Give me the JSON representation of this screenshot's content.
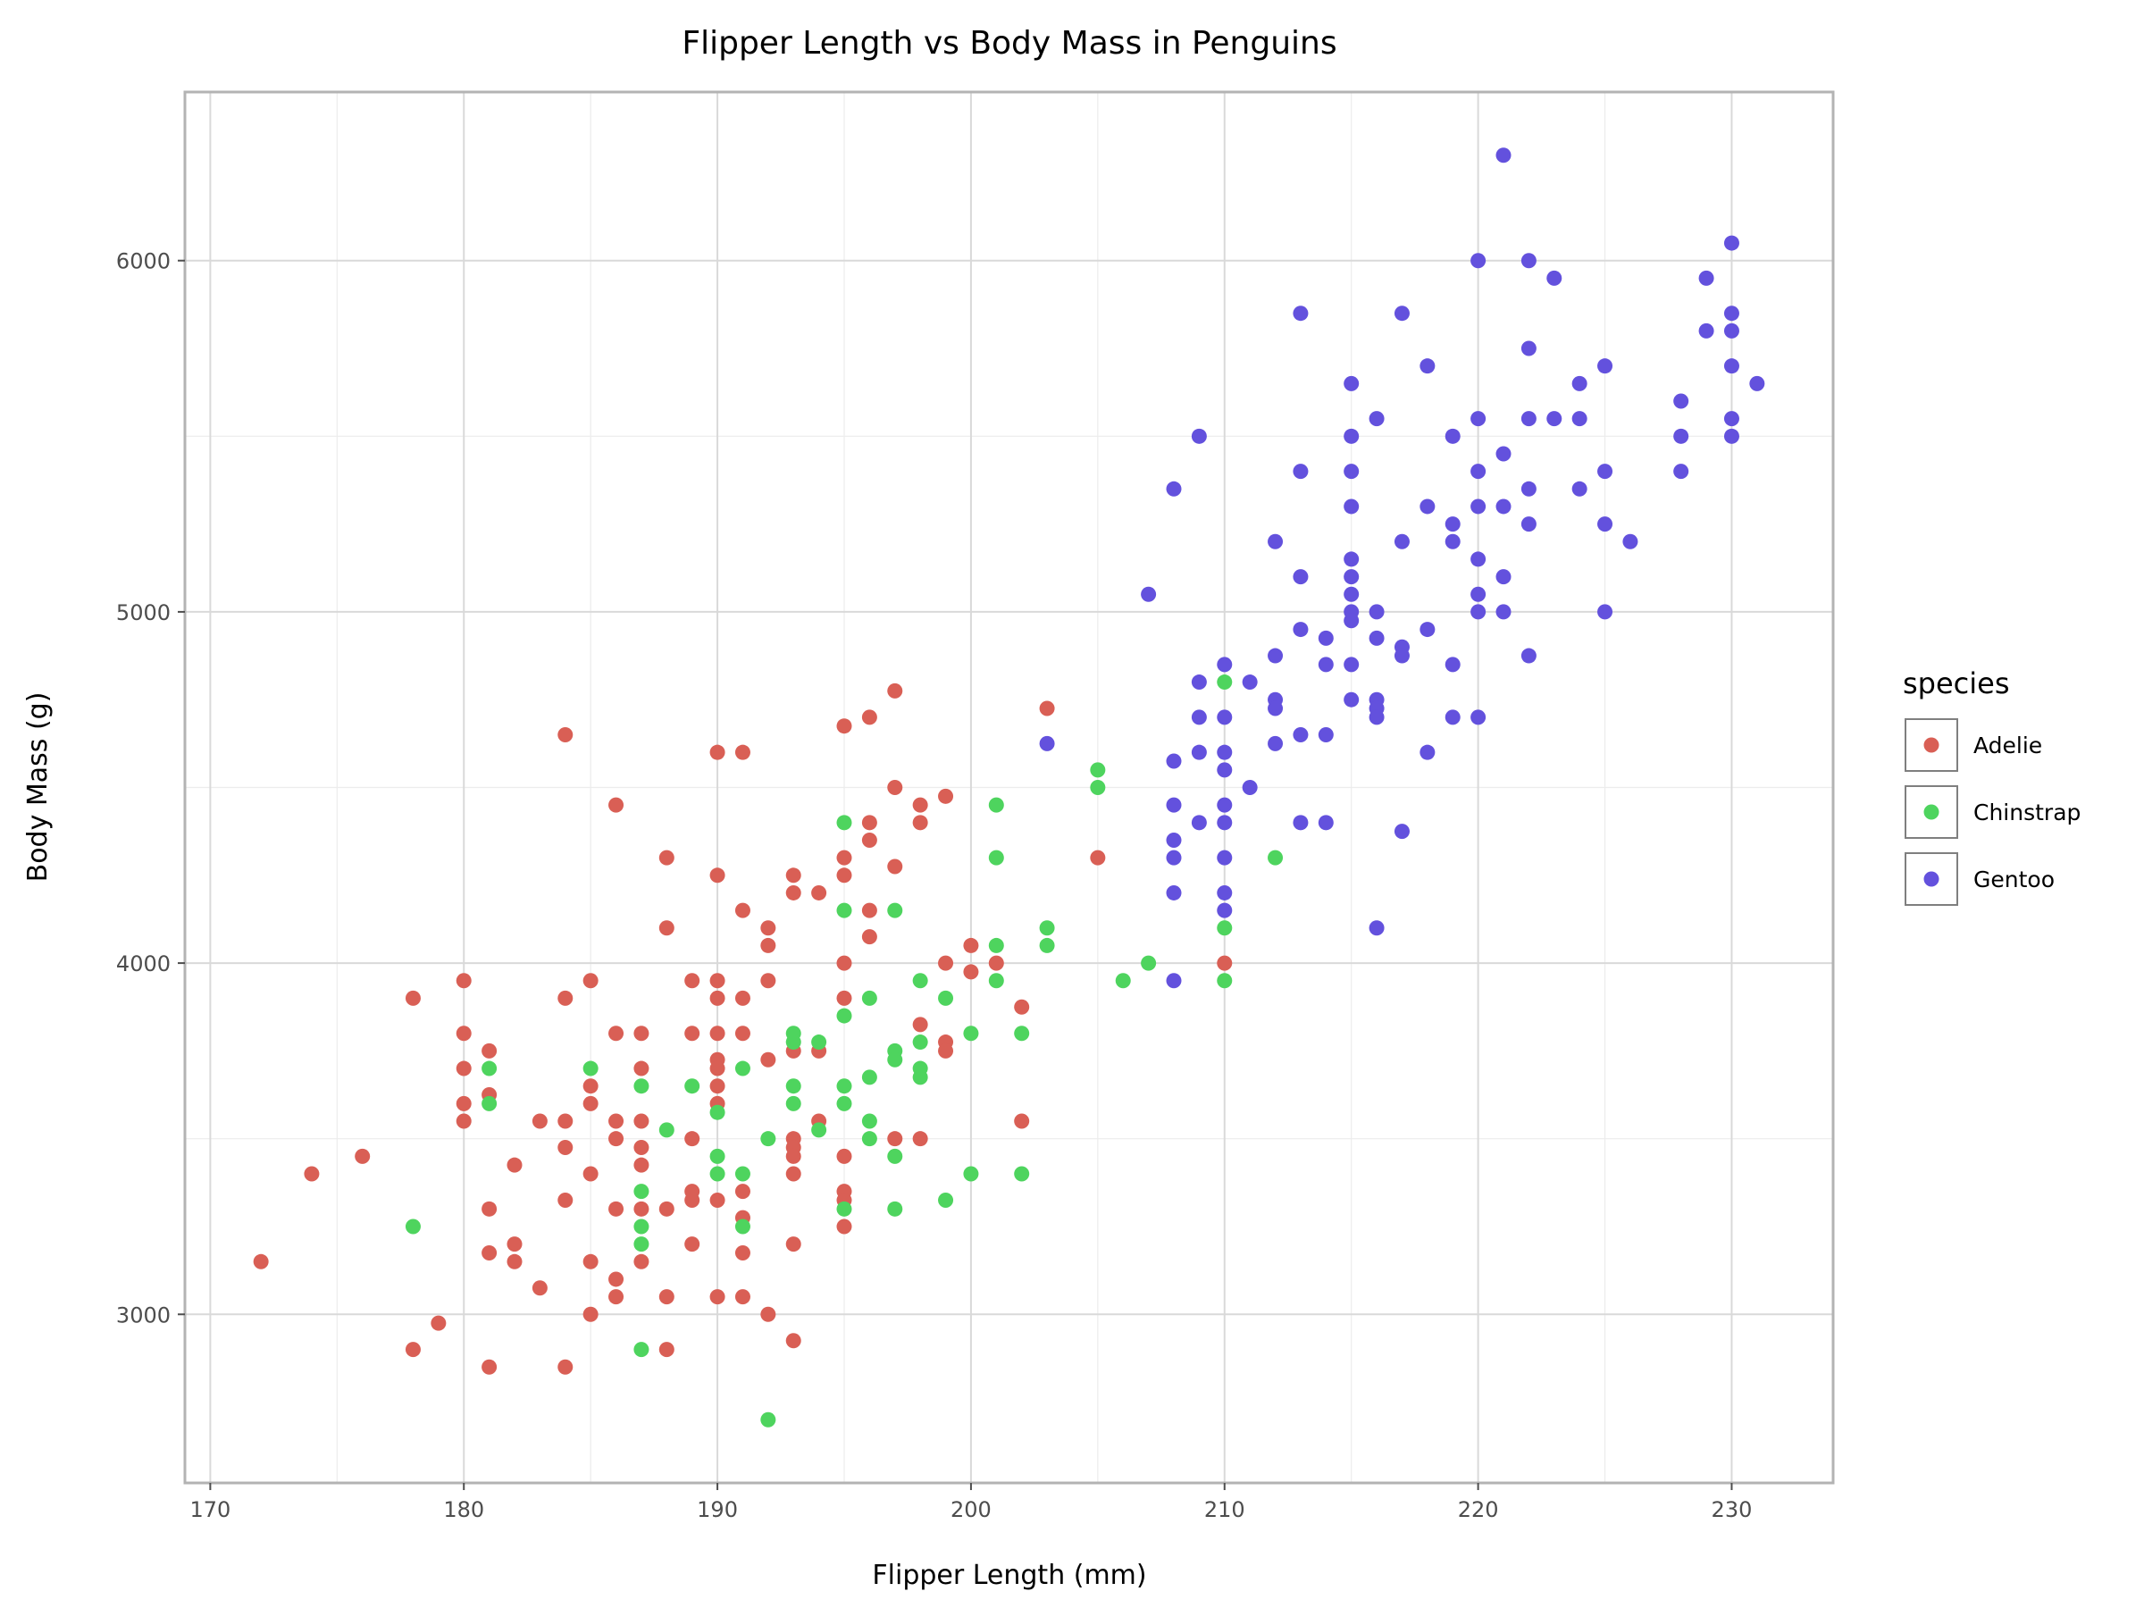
{
  "chart_data": {
    "type": "scatter",
    "title": "Flipper Length vs Body Mass in Penguins",
    "xlabel": "Flipper Length (mm)",
    "ylabel": "Body Mass (g)",
    "xlim": [
      169,
      234
    ],
    "ylim": [
      2520,
      6480
    ],
    "x_ticks": [
      170,
      180,
      190,
      200,
      210,
      220,
      230
    ],
    "y_ticks": [
      3000,
      4000,
      5000,
      6000
    ],
    "grid": true,
    "legend_position": "right",
    "legend_title": "species",
    "series": [
      {
        "name": "Adelie",
        "color": "#d95f55",
        "points": [
          [
            172,
            3150
          ],
          [
            174,
            3400
          ],
          [
            176,
            3450
          ],
          [
            178,
            3900
          ],
          [
            178,
            2900
          ],
          [
            179,
            2975
          ],
          [
            180,
            3950
          ],
          [
            180,
            3800
          ],
          [
            180,
            3700
          ],
          [
            180,
            3600
          ],
          [
            180,
            3550
          ],
          [
            181,
            3750
          ],
          [
            181,
            3625
          ],
          [
            181,
            3300
          ],
          [
            181,
            3175
          ],
          [
            181,
            2850
          ],
          [
            182,
            3425
          ],
          [
            182,
            3200
          ],
          [
            182,
            3150
          ],
          [
            183,
            3550
          ],
          [
            183,
            3075
          ],
          [
            184,
            4650
          ],
          [
            184,
            3900
          ],
          [
            184,
            3550
          ],
          [
            184,
            3475
          ],
          [
            184,
            3325
          ],
          [
            184,
            2850
          ],
          [
            185,
            3950
          ],
          [
            185,
            3650
          ],
          [
            185,
            3600
          ],
          [
            185,
            3400
          ],
          [
            185,
            3150
          ],
          [
            185,
            3000
          ],
          [
            186,
            4450
          ],
          [
            186,
            3800
          ],
          [
            186,
            3550
          ],
          [
            186,
            3500
          ],
          [
            186,
            3300
          ],
          [
            186,
            3100
          ],
          [
            186,
            3050
          ],
          [
            187,
            3800
          ],
          [
            187,
            3700
          ],
          [
            187,
            3550
          ],
          [
            187,
            3475
          ],
          [
            187,
            3425
          ],
          [
            187,
            3300
          ],
          [
            187,
            3150
          ],
          [
            188,
            4300
          ],
          [
            188,
            4100
          ],
          [
            188,
            3300
          ],
          [
            188,
            3050
          ],
          [
            188,
            2900
          ],
          [
            189,
            3950
          ],
          [
            189,
            3800
          ],
          [
            189,
            3500
          ],
          [
            189,
            3350
          ],
          [
            189,
            3325
          ],
          [
            189,
            3200
          ],
          [
            190,
            4600
          ],
          [
            190,
            4250
          ],
          [
            190,
            3950
          ],
          [
            190,
            3900
          ],
          [
            190,
            3800
          ],
          [
            190,
            3725
          ],
          [
            190,
            3700
          ],
          [
            190,
            3650
          ],
          [
            190,
            3600
          ],
          [
            190,
            3325
          ],
          [
            190,
            3050
          ],
          [
            191,
            4600
          ],
          [
            191,
            4150
          ],
          [
            191,
            3900
          ],
          [
            191,
            3800
          ],
          [
            191,
            3350
          ],
          [
            191,
            3275
          ],
          [
            191,
            3175
          ],
          [
            191,
            3050
          ],
          [
            192,
            4100
          ],
          [
            192,
            4050
          ],
          [
            192,
            3950
          ],
          [
            192,
            3725
          ],
          [
            192,
            3000
          ],
          [
            193,
            4250
          ],
          [
            193,
            4200
          ],
          [
            193,
            3750
          ],
          [
            193,
            3500
          ],
          [
            193,
            3475
          ],
          [
            193,
            3450
          ],
          [
            193,
            3400
          ],
          [
            193,
            3200
          ],
          [
            193,
            2925
          ],
          [
            194,
            4200
          ],
          [
            194,
            3750
          ],
          [
            194,
            3550
          ],
          [
            195,
            4675
          ],
          [
            195,
            4300
          ],
          [
            195,
            4250
          ],
          [
            195,
            4000
          ],
          [
            195,
            3900
          ],
          [
            195,
            3450
          ],
          [
            195,
            3350
          ],
          [
            195,
            3325
          ],
          [
            195,
            3250
          ],
          [
            196,
            4700
          ],
          [
            196,
            4400
          ],
          [
            196,
            4350
          ],
          [
            196,
            4150
          ],
          [
            196,
            4075
          ],
          [
            197,
            4775
          ],
          [
            197,
            4500
          ],
          [
            197,
            4275
          ],
          [
            197,
            3500
          ],
          [
            198,
            4450
          ],
          [
            198,
            4400
          ],
          [
            198,
            3825
          ],
          [
            198,
            3500
          ],
          [
            199,
            4475
          ],
          [
            199,
            4000
          ],
          [
            199,
            3775
          ],
          [
            199,
            3750
          ],
          [
            200,
            4050
          ],
          [
            200,
            3975
          ],
          [
            201,
            4000
          ],
          [
            202,
            3875
          ],
          [
            202,
            3550
          ],
          [
            203,
            4725
          ],
          [
            205,
            4300
          ],
          [
            210,
            4000
          ]
        ]
      },
      {
        "name": "Chinstrap",
        "color": "#4ed45e",
        "points": [
          [
            178,
            3250
          ],
          [
            181,
            3700
          ],
          [
            181,
            3600
          ],
          [
            185,
            3700
          ],
          [
            187,
            3650
          ],
          [
            187,
            3350
          ],
          [
            187,
            3250
          ],
          [
            187,
            3200
          ],
          [
            187,
            2900
          ],
          [
            188,
            3525
          ],
          [
            189,
            3650
          ],
          [
            190,
            3575
          ],
          [
            190,
            3450
          ],
          [
            190,
            3400
          ],
          [
            191,
            3700
          ],
          [
            191,
            3400
          ],
          [
            191,
            3250
          ],
          [
            192,
            3500
          ],
          [
            192,
            2700
          ],
          [
            193,
            3800
          ],
          [
            193,
            3775
          ],
          [
            193,
            3650
          ],
          [
            193,
            3600
          ],
          [
            194,
            3775
          ],
          [
            194,
            3525
          ],
          [
            195,
            4400
          ],
          [
            195,
            4150
          ],
          [
            195,
            3850
          ],
          [
            195,
            3650
          ],
          [
            195,
            3600
          ],
          [
            195,
            3300
          ],
          [
            196,
            3900
          ],
          [
            196,
            3675
          ],
          [
            196,
            3550
          ],
          [
            196,
            3500
          ],
          [
            197,
            4150
          ],
          [
            197,
            3750
          ],
          [
            197,
            3725
          ],
          [
            197,
            3450
          ],
          [
            197,
            3300
          ],
          [
            198,
            3950
          ],
          [
            198,
            3775
          ],
          [
            198,
            3700
          ],
          [
            198,
            3675
          ],
          [
            199,
            3900
          ],
          [
            199,
            3325
          ],
          [
            200,
            3800
          ],
          [
            200,
            3400
          ],
          [
            201,
            4450
          ],
          [
            201,
            4300
          ],
          [
            201,
            4050
          ],
          [
            201,
            3950
          ],
          [
            202,
            3800
          ],
          [
            202,
            3400
          ],
          [
            203,
            4100
          ],
          [
            203,
            4050
          ],
          [
            205,
            4550
          ],
          [
            205,
            4500
          ],
          [
            206,
            3950
          ],
          [
            207,
            4000
          ],
          [
            210,
            4800
          ],
          [
            210,
            4100
          ],
          [
            210,
            3950
          ],
          [
            212,
            4300
          ]
        ]
      },
      {
        "name": "Gentoo",
        "color": "#6351dd",
        "points": [
          [
            203,
            4625
          ],
          [
            207,
            5050
          ],
          [
            208,
            5350
          ],
          [
            208,
            4575
          ],
          [
            208,
            4450
          ],
          [
            208,
            4350
          ],
          [
            208,
            4300
          ],
          [
            208,
            4200
          ],
          [
            208,
            3950
          ],
          [
            209,
            5500
          ],
          [
            209,
            4800
          ],
          [
            209,
            4700
          ],
          [
            209,
            4600
          ],
          [
            209,
            4400
          ],
          [
            210,
            4850
          ],
          [
            210,
            4700
          ],
          [
            210,
            4600
          ],
          [
            210,
            4550
          ],
          [
            210,
            4450
          ],
          [
            210,
            4400
          ],
          [
            210,
            4300
          ],
          [
            210,
            4200
          ],
          [
            210,
            4150
          ],
          [
            211,
            4800
          ],
          [
            211,
            4500
          ],
          [
            212,
            5200
          ],
          [
            212,
            4875
          ],
          [
            212,
            4750
          ],
          [
            212,
            4725
          ],
          [
            212,
            4625
          ],
          [
            213,
            5850
          ],
          [
            213,
            5400
          ],
          [
            213,
            5100
          ],
          [
            213,
            4950
          ],
          [
            213,
            4650
          ],
          [
            213,
            4400
          ],
          [
            214,
            4925
          ],
          [
            214,
            4850
          ],
          [
            214,
            4650
          ],
          [
            214,
            4400
          ],
          [
            215,
            5650
          ],
          [
            215,
            5500
          ],
          [
            215,
            5400
          ],
          [
            215,
            5300
          ],
          [
            215,
            5150
          ],
          [
            215,
            5100
          ],
          [
            215,
            5050
          ],
          [
            215,
            5000
          ],
          [
            215,
            4975
          ],
          [
            215,
            4850
          ],
          [
            215,
            4750
          ],
          [
            216,
            5550
          ],
          [
            216,
            5000
          ],
          [
            216,
            4925
          ],
          [
            216,
            4750
          ],
          [
            216,
            4725
          ],
          [
            216,
            4700
          ],
          [
            216,
            4100
          ],
          [
            217,
            5850
          ],
          [
            217,
            5200
          ],
          [
            217,
            4900
          ],
          [
            217,
            4875
          ],
          [
            217,
            4375
          ],
          [
            218,
            5700
          ],
          [
            218,
            5300
          ],
          [
            218,
            4950
          ],
          [
            218,
            4600
          ],
          [
            219,
            5500
          ],
          [
            219,
            5250
          ],
          [
            219,
            5200
          ],
          [
            219,
            4850
          ],
          [
            219,
            4700
          ],
          [
            220,
            6000
          ],
          [
            220,
            5550
          ],
          [
            220,
            5400
          ],
          [
            220,
            5300
          ],
          [
            220,
            5150
          ],
          [
            220,
            5050
          ],
          [
            220,
            5000
          ],
          [
            220,
            4700
          ],
          [
            221,
            6300
          ],
          [
            221,
            5450
          ],
          [
            221,
            5300
          ],
          [
            221,
            5100
          ],
          [
            221,
            5000
          ],
          [
            222,
            6000
          ],
          [
            222,
            5750
          ],
          [
            222,
            5550
          ],
          [
            222,
            5350
          ],
          [
            222,
            5250
          ],
          [
            222,
            4875
          ],
          [
            223,
            5950
          ],
          [
            223,
            5550
          ],
          [
            224,
            5650
          ],
          [
            224,
            5550
          ],
          [
            224,
            5350
          ],
          [
            225,
            5700
          ],
          [
            225,
            5400
          ],
          [
            225,
            5250
          ],
          [
            225,
            5000
          ],
          [
            226,
            5200
          ],
          [
            228,
            5600
          ],
          [
            228,
            5500
          ],
          [
            228,
            5400
          ],
          [
            229,
            5950
          ],
          [
            229,
            5800
          ],
          [
            230,
            6050
          ],
          [
            230,
            5850
          ],
          [
            230,
            5800
          ],
          [
            230,
            5700
          ],
          [
            230,
            5550
          ],
          [
            230,
            5500
          ],
          [
            231,
            5650
          ]
        ]
      }
    ]
  }
}
